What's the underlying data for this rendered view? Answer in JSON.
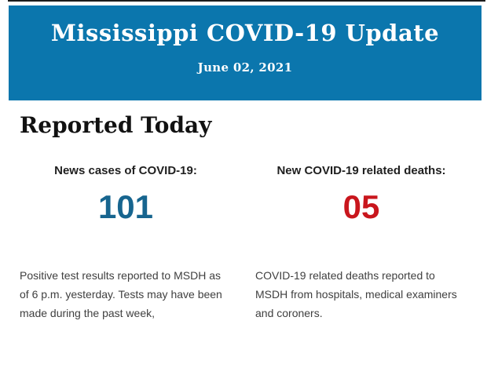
{
  "banner": {
    "title": "Mississippi COVID-19 Update",
    "date": "June 02, 2021",
    "bg_color": "#0b76ad",
    "text_color": "#ffffff"
  },
  "main": {
    "heading": "Reported Today",
    "stats": [
      {
        "label": "News cases of COVID-19:",
        "value": "101",
        "value_color": "#17658f",
        "description": "Positive test results reported to MSDH as of 6 p.m. yesterday. Tests may have been made during the past week,"
      },
      {
        "label": "New COVID-19 related deaths:",
        "value": "05",
        "value_color": "#c9161d",
        "description": "COVID-19 related deaths reported to MSDH from hospitals, medical examiners and coroners."
      }
    ]
  }
}
